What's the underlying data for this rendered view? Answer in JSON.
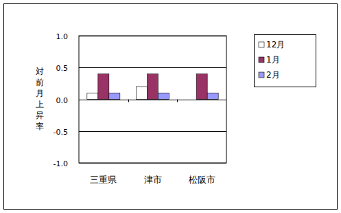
{
  "chart_data": {
    "type": "bar",
    "y_label": "対前月上昇率",
    "categories": [
      "三重県",
      "津市",
      "松阪市"
    ],
    "series": [
      {
        "name": "12月",
        "color": "#ffffff",
        "values": [
          0.1,
          0.2,
          0.0
        ]
      },
      {
        "name": "1月",
        "color": "#993366",
        "values": [
          0.4,
          0.4,
          0.4
        ]
      },
      {
        "name": "2月",
        "color": "#9999ff",
        "values": [
          0.1,
          0.1,
          0.1
        ]
      }
    ],
    "ylim": [
      -1.0,
      1.0
    ],
    "yticks": [
      {
        "value": -1.0,
        "label": "-1.0"
      },
      {
        "value": -0.5,
        "label": "-0.5"
      },
      {
        "value": 0,
        "label": "0.0"
      },
      {
        "value": 0.5,
        "label": "0.5"
      },
      {
        "value": 1.0,
        "label": "1.0"
      }
    ],
    "grid": true,
    "legend": "right"
  }
}
